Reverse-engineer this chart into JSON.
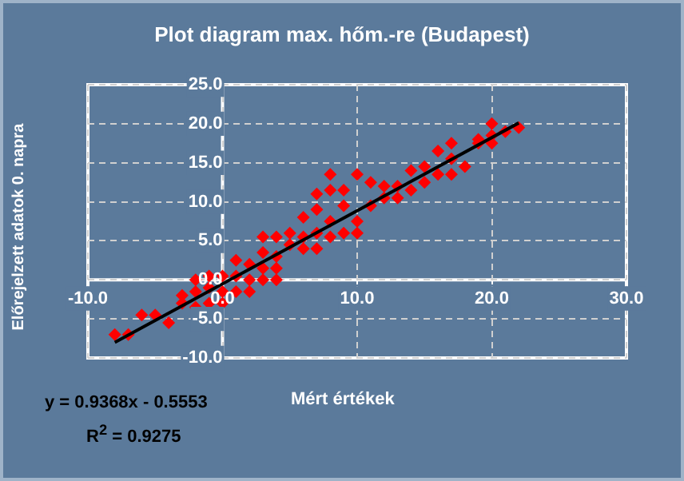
{
  "chart_data": {
    "type": "scatter",
    "title": "Plot diagram max. hőm.-re (Budapest)",
    "xlabel": "Mért értékek",
    "ylabel": "Előrejelzett adatok 0. napra",
    "annotations": [
      "y = 0.9368x - 0.5553",
      "R$^{2}$ = 0.9275"
    ],
    "series": [
      {
        "color": "#ff0000",
        "x": [
          -8,
          -7,
          -6,
          -5,
          -4,
          -3,
          -3,
          -2,
          -2,
          -2,
          -1,
          -1,
          -1,
          0,
          0,
          0,
          1,
          1,
          1,
          2,
          2,
          2,
          3,
          3,
          3,
          3,
          4,
          4,
          4,
          4,
          5,
          5,
          6,
          6,
          6,
          7,
          7,
          7,
          7,
          8,
          8,
          8,
          8,
          9,
          9,
          9,
          10,
          10,
          10,
          11,
          11,
          12,
          12,
          13,
          13,
          14,
          14,
          15,
          15,
          16,
          16,
          17,
          17,
          17,
          18,
          19,
          19,
          20,
          20,
          20,
          21,
          22
        ],
        "values": [
          -7,
          -7,
          -4.5,
          -4.5,
          -5.5,
          -2,
          -3,
          0,
          -1.5,
          -3.5,
          0.5,
          -1,
          -3,
          0.5,
          -1.5,
          -3,
          2.5,
          0.5,
          -1.5,
          2,
          0,
          -1.5,
          5.5,
          3.5,
          1.5,
          0,
          5.5,
          3,
          1.5,
          0,
          6,
          4.5,
          8,
          5.5,
          4,
          11,
          9,
          6,
          4,
          13.5,
          11.5,
          7.5,
          5.5,
          11.5,
          9.5,
          6,
          13.5,
          7.5,
          6,
          12.5,
          9.5,
          12,
          10.5,
          12,
          10.5,
          14,
          11.5,
          14.5,
          12.5,
          16.5,
          13.5,
          17.5,
          15.5,
          13.5,
          14.5,
          18,
          17.5,
          20,
          18.5,
          17.5,
          19,
          19.5
        ]
      },
      {
        "type": "line",
        "color": "#000000",
        "x": [
          -8,
          22
        ],
        "values": [
          -8.0,
          20.1
        ],
        "marker": "none"
      }
    ],
    "xlim": [
      -10,
      30
    ],
    "ylim": [
      -10,
      25
    ],
    "xticks": [
      {
        "value": -10,
        "label": "-10.0"
      },
      {
        "value": 0,
        "label": "0.0"
      },
      {
        "value": 10,
        "label": "10.0"
      },
      {
        "value": 20,
        "label": "20.0"
      },
      {
        "value": 30,
        "label": "30.0"
      }
    ],
    "yticks": [
      {
        "value": -10,
        "label": "-10.0"
      },
      {
        "value": -5,
        "label": "-5.0"
      },
      {
        "value": 0,
        "label": "0.0"
      },
      {
        "value": 5,
        "label": "5.0"
      },
      {
        "value": 10,
        "label": "10.0"
      },
      {
        "value": 15,
        "label": "15.0"
      },
      {
        "value": 20,
        "label": "20.0"
      },
      {
        "value": 25,
        "label": "25.0"
      }
    ],
    "grid": true,
    "marker": "diamond",
    "legend": false
  }
}
